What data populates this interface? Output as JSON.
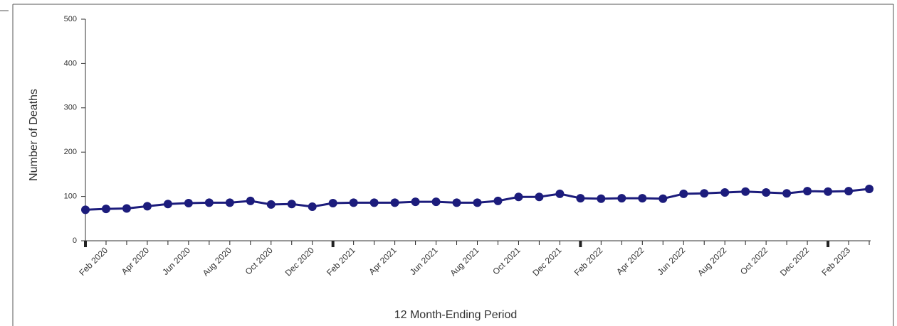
{
  "chart_data": {
    "type": "line",
    "x_label": "12 Month-Ending Period",
    "y_label": "Number of Deaths",
    "categories": [
      null,
      "Feb 2020",
      null,
      "Apr 2020",
      null,
      "Jun 2020",
      null,
      "Aug 2020",
      null,
      "Oct 2020",
      null,
      "Dec 2020",
      null,
      "Feb 2021",
      null,
      "Apr 2021",
      null,
      "Jun 2021",
      null,
      "Aug 2021",
      null,
      "Oct 2021",
      null,
      "Dec 2021",
      null,
      "Feb 2022",
      null,
      "Apr 2022",
      null,
      "Jun 2022",
      null,
      "Aug 2022",
      null,
      "Oct 2022",
      null,
      "Dec 2022",
      null,
      "Feb 2023",
      null
    ],
    "series": [
      {
        "name": "Deaths",
        "color": "#1c1c7c",
        "values": [
          70,
          72,
          73,
          78,
          83,
          85,
          86,
          86,
          90,
          82,
          83,
          77,
          85,
          86,
          86,
          86,
          88,
          88,
          86,
          86,
          90,
          99,
          99,
          106,
          96,
          95,
          96,
          96,
          95,
          106,
          107,
          109,
          111,
          109,
          107,
          112,
          111,
          112,
          117
        ]
      }
    ],
    "ylim": [
      0,
      500
    ],
    "yticks": [
      0,
      100,
      200,
      300,
      400,
      500
    ]
  }
}
